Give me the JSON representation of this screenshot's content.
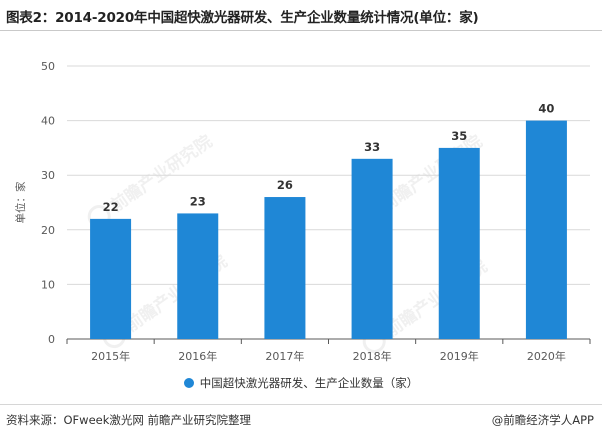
{
  "title": "图表2：2014-2020年中国超快激光器研发、生产企业数量统计情况(单位：家)",
  "source": "资料来源：OFweek激光网 前瞻产业研究院整理",
  "credit": "@前瞻经济学人APP",
  "watermark": "前瞻产业研究院",
  "colors": {
    "bar": "#1f87d6",
    "grid": "#d9d9d9",
    "axis": "#595959"
  },
  "chart_data": {
    "type": "bar",
    "title": "图表2：2014-2020年中国超快激光器研发、生产企业数量统计情况(单位：家)",
    "xlabel": "",
    "ylabel": "单位：家",
    "categories": [
      "2015年",
      "2016年",
      "2017年",
      "2018年",
      "2019年",
      "2020年"
    ],
    "series": [
      {
        "name": "中国超快激光器研发、生产企业数量（家）",
        "values": [
          22,
          23,
          26,
          33,
          35,
          40
        ]
      }
    ],
    "ylim": [
      0,
      50
    ],
    "yticks": [
      0,
      10,
      20,
      30,
      40,
      50
    ],
    "grid": true,
    "legend_position": "bottom-center"
  }
}
